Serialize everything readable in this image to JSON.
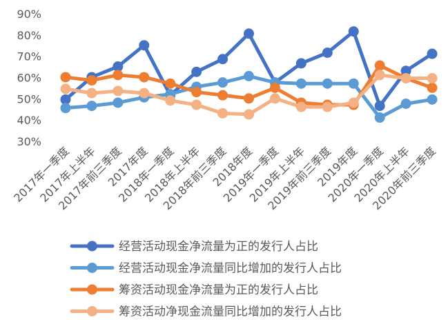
{
  "chart_data": {
    "type": "line",
    "title": "",
    "xlabel": "",
    "ylabel": "",
    "ylim": [
      30,
      90
    ],
    "y_ticks": [
      "30%",
      "40%",
      "50%",
      "60%",
      "70%",
      "80%",
      "90%"
    ],
    "grid": false,
    "legend_position": "bottom",
    "categories": [
      "2017年一季度",
      "2017年上半年",
      "2017年前三季度",
      "2017年度",
      "2018年一季度",
      "2018年上半年",
      "2018年前三季度",
      "2018年度",
      "2019年一季度",
      "2019年上半年",
      "2019年前三季度",
      "2019年度",
      "2020年一季度",
      "2020年上半年",
      "2020年前三季度"
    ],
    "series": [
      {
        "name": "经营活动现金净流量为正的发行人占比",
        "color": "#4472C4",
        "values": [
          50,
          60.5,
          65.5,
          75.5,
          52,
          63,
          69,
          81,
          58,
          67,
          72,
          82,
          47,
          63.5,
          71.5
        ]
      },
      {
        "name": "经营活动现金净流量同比增加的发行人占比",
        "color": "#5B9BD5",
        "values": [
          46,
          47,
          48.5,
          51,
          52.5,
          56,
          58,
          61,
          58,
          57.5,
          57.5,
          57.5,
          41.5,
          48,
          50
        ]
      },
      {
        "name": "筹资活动现金净流量为正的发行人占比",
        "color": "#ED7D31",
        "values": [
          60.5,
          59,
          61.5,
          60.5,
          57.5,
          53.5,
          52,
          50.5,
          55.5,
          48.5,
          47.5,
          47.5,
          66,
          60,
          55.5
        ]
      },
      {
        "name": "筹资活动净现金流量同比增加的发行人占比",
        "color": "#F4B183",
        "values": [
          55,
          53,
          54,
          53,
          49.5,
          47.5,
          43.5,
          43,
          50.5,
          46.5,
          46.5,
          48.5,
          61.5,
          60,
          60
        ]
      }
    ]
  }
}
